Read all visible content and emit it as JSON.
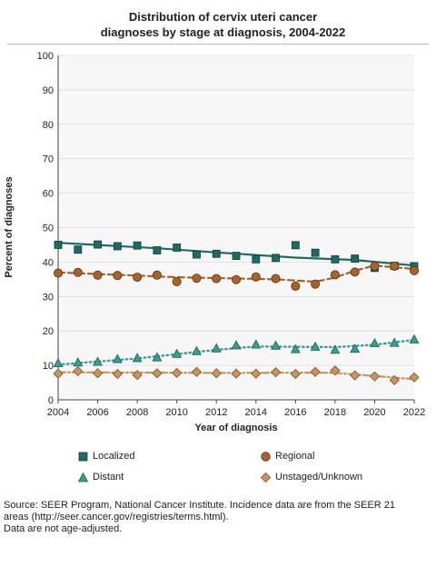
{
  "chart_data": {
    "type": "scatter",
    "title_lines": [
      "Distribution of cervix uteri cancer",
      "diagnoses by stage at diagnosis, 2004-2022"
    ],
    "xlabel": "Year of diagnosis",
    "ylabel": "Percent of diagnoses",
    "xlim": [
      2004,
      2022
    ],
    "ylim": [
      0,
      100
    ],
    "x_ticks": [
      "2004",
      "2006",
      "2008",
      "2010",
      "2012",
      "2014",
      "2016",
      "2018",
      "2020",
      "2022"
    ],
    "y_ticks": [
      "0",
      "10",
      "20",
      "30",
      "40",
      "50",
      "60",
      "70",
      "80",
      "90",
      "100"
    ],
    "x": [
      2004,
      2005,
      2006,
      2007,
      2008,
      2009,
      2010,
      2011,
      2012,
      2013,
      2014,
      2015,
      2016,
      2017,
      2018,
      2019,
      2020,
      2021,
      2022
    ],
    "series": [
      {
        "name": "Localized",
        "marker": "square",
        "color": "#1f6b63",
        "line_style": "solid",
        "values": [
          45.0,
          43.6,
          45.1,
          44.6,
          44.8,
          43.4,
          44.2,
          42.2,
          42.4,
          41.8,
          40.8,
          41.2,
          44.9,
          42.7,
          40.8,
          41.0,
          38.3,
          38.9,
          38.8
        ],
        "trend": [
          [
            2004,
            45.6
          ],
          [
            2009,
            44.0
          ],
          [
            2012,
            42.8
          ],
          [
            2016,
            41.3
          ],
          [
            2019,
            40.6
          ],
          [
            2022,
            39.0
          ]
        ]
      },
      {
        "name": "Regional",
        "marker": "circle",
        "color": "#a8622b",
        "line_style": "dashed",
        "values": [
          36.8,
          37.0,
          36.2,
          36.1,
          35.6,
          36.2,
          34.3,
          35.3,
          35.2,
          34.9,
          35.7,
          35.2,
          33.0,
          33.6,
          36.3,
          37.1,
          38.8,
          38.8,
          37.5
        ],
        "trend": [
          [
            2004,
            37.0
          ],
          [
            2010,
            35.6
          ],
          [
            2015,
            35.0
          ],
          [
            2017,
            34.3
          ],
          [
            2018,
            35.5
          ],
          [
            2019,
            37.5
          ],
          [
            2020,
            39.0
          ],
          [
            2022,
            38.0
          ]
        ]
      },
      {
        "name": "Distant",
        "marker": "triangle",
        "color": "#3a9d93",
        "line_style": "dotted",
        "values": [
          10.6,
          10.8,
          11.0,
          11.8,
          12.1,
          12.3,
          13.3,
          14.1,
          14.9,
          15.8,
          16.0,
          15.7,
          14.7,
          15.4,
          14.5,
          14.8,
          16.4,
          16.5,
          17.5
        ],
        "trend": [
          [
            2004,
            10.2
          ],
          [
            2008,
            12.0
          ],
          [
            2012,
            14.5
          ],
          [
            2014,
            15.5
          ],
          [
            2018,
            15.3
          ],
          [
            2020,
            16.0
          ],
          [
            2022,
            17.4
          ]
        ]
      },
      {
        "name": "Unstaged/Unknown",
        "marker": "diamond",
        "color": "#c89560",
        "line_style": "dashdot",
        "values": [
          7.6,
          8.3,
          7.7,
          7.5,
          7.2,
          7.7,
          7.8,
          8.1,
          7.7,
          7.6,
          7.6,
          8.0,
          7.5,
          8.1,
          8.5,
          7.1,
          6.8,
          5.7,
          6.5
        ],
        "trend": [
          [
            2004,
            8.0
          ],
          [
            2012,
            7.8
          ],
          [
            2017,
            7.9
          ],
          [
            2018,
            7.8
          ],
          [
            2020,
            6.9
          ],
          [
            2022,
            6.0
          ]
        ]
      }
    ],
    "legend_position": "bottom",
    "grid": true
  },
  "source_note": [
    "Source: SEER Program, National Cancer Institute. Incidence data are from the SEER 21",
    "areas (http://seer.cancer.gov/registries/terms.html).",
    "Data are not age-adjusted."
  ]
}
